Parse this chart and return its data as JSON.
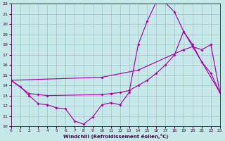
{
  "xlabel": "Windchill (Refroidissement éolien,°C)",
  "xlim": [
    0,
    23
  ],
  "ylim": [
    10,
    22
  ],
  "xticks": [
    0,
    1,
    2,
    3,
    4,
    5,
    6,
    7,
    8,
    9,
    10,
    11,
    12,
    13,
    14,
    15,
    16,
    17,
    18,
    19,
    20,
    21,
    22,
    23
  ],
  "yticks": [
    10,
    11,
    12,
    13,
    14,
    15,
    16,
    17,
    18,
    19,
    20,
    21,
    22
  ],
  "bg_color": "#c5e8e8",
  "line_color": "#aa00aa",
  "grid_color": "#9999bb",
  "line1_x": [
    0,
    1,
    2,
    3,
    4,
    5,
    6,
    7,
    8,
    9,
    10,
    11,
    12,
    13,
    14,
    15,
    16,
    17,
    18,
    19,
    20,
    21,
    22,
    23
  ],
  "line1_y": [
    14.5,
    13.9,
    13.0,
    12.2,
    12.1,
    11.8,
    11.7,
    10.5,
    10.2,
    10.9,
    12.1,
    12.3,
    12.1,
    13.3,
    18.0,
    20.3,
    22.2,
    22.1,
    21.2,
    19.3,
    18.0,
    16.3,
    15.2,
    13.3
  ],
  "line2_x": [
    0,
    2,
    3,
    4,
    10,
    11,
    12,
    13,
    14,
    15,
    16,
    17,
    18,
    19,
    23
  ],
  "line2_y": [
    14.5,
    13.2,
    13.1,
    13.0,
    13.1,
    13.2,
    13.3,
    13.5,
    14.0,
    14.5,
    15.2,
    16.0,
    17.0,
    19.3,
    13.3
  ],
  "line3_x": [
    0,
    10,
    14,
    19,
    20,
    21,
    22,
    23
  ],
  "line3_y": [
    14.5,
    14.8,
    15.5,
    17.5,
    17.8,
    17.5,
    18.0,
    13.3
  ]
}
